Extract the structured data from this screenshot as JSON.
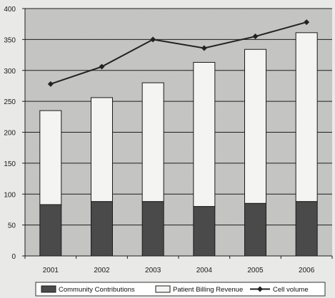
{
  "chart_data": {
    "type": "bar",
    "title": "",
    "xlabel": "",
    "ylabel": "",
    "ylim": [
      0,
      400
    ],
    "y_ticks": [
      "0",
      "50",
      "100",
      "150",
      "200",
      "250",
      "300",
      "350",
      "400"
    ],
    "y_tick_values": [
      0,
      50,
      100,
      150,
      200,
      250,
      300,
      350,
      400
    ],
    "categories": [
      "2001",
      "2002",
      "2003",
      "2004",
      "2005",
      "2006"
    ],
    "stacked": true,
    "series": [
      {
        "name": "Community Contributions",
        "kind": "bar",
        "color": "#4a4a4a",
        "values": [
          83,
          88,
          88,
          80,
          85,
          88
        ]
      },
      {
        "name": "Patient Billing Revenue",
        "kind": "bar",
        "color": "#f4f4f2",
        "values": [
          152,
          168,
          192,
          233,
          249,
          273
        ]
      },
      {
        "name": "Cell volume",
        "kind": "line",
        "color": "#222222",
        "values": [
          278,
          306,
          350,
          336,
          355,
          378
        ]
      }
    ],
    "legend": {
      "position": "bottom",
      "labels": [
        "Community Contributions",
        "Patient Billing Revenue",
        "Cell volume"
      ]
    },
    "grid": true,
    "plot_area_color": "#c6c6c4"
  }
}
